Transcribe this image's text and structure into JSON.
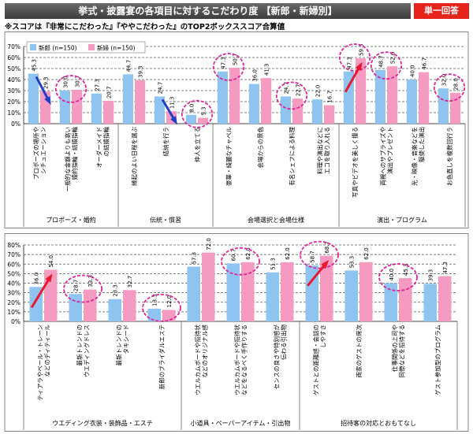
{
  "header": {
    "title": "挙式・披露宴の各項目に対するこだわり度 【新郎・新婦別】",
    "badge": "単一回答",
    "note": "※スコアは『非常にこだわった』『ややこだわった』のTOP2ボックススコア合算値"
  },
  "colors": {
    "groom": "#8fc4f0",
    "bride": "#f59ac0",
    "highlight": "#e0249a",
    "arrow_up": "#e8182e",
    "arrow_down": "#1f3fc4"
  },
  "chart_data": [
    {
      "type": "bar",
      "ylim": [
        0,
        70
      ],
      "yticks": [
        "0%",
        "10%",
        "20%",
        "30%",
        "40%",
        "50%",
        "60%",
        "70%"
      ],
      "grid": true,
      "legend": "top-left",
      "series": [
        {
          "name": "新郎 (n=150)",
          "values": [
            45.3,
            30.0,
            27.3,
            44.7,
            24.7,
            8.0,
            47.3,
            36.0,
            24.7,
            22.0,
            47.3,
            48.7,
            40.0,
            32.0
          ]
        },
        {
          "name": "新婦 (n=150)",
          "values": [
            29.3,
            30.7,
            20.7,
            39.3,
            11.3,
            5.3,
            50.7,
            41.3,
            22.7,
            16.7,
            59.3,
            52.0,
            46.7,
            28.0
          ]
        }
      ],
      "categories": [
        "プロポーズの場所や\nシチュエーション",
        "一般的な金額よりも高い\n婚約指輪・結婚指輪",
        "オーダーメイド\nの結婚指輪",
        "縁起のよい日程を選ぶ",
        "結納を行う",
        "仲人を立てる",
        "豪華・綺麗なチャペル",
        "会場からの景色",
        "有名シェフによる料理",
        "料理や演出などに\nエコを取り入れる",
        "写真やビデオを美しく撮る",
        "両親へのサプライズや\n演出やプレゼント",
        "光・映像・音楽などを\n駆使した演出",
        "お色直しを複数回行う"
      ],
      "groups": [
        {
          "label": "プロポーズ・婚約",
          "start": 0,
          "count": 3
        },
        {
          "label": "伝統・慣習",
          "start": 3,
          "count": 3
        },
        {
          "label": "会場選択と会場仕様",
          "start": 6,
          "count": 4
        },
        {
          "label": "演出・プログラム",
          "start": 10,
          "count": 4
        }
      ],
      "highlights": [
        1,
        5,
        6,
        8,
        10,
        11,
        13
      ],
      "arrows": [
        {
          "index": 0,
          "dir": "down"
        },
        {
          "index": 4,
          "dir": "down"
        },
        {
          "index": 10,
          "dir": "up"
        }
      ]
    },
    {
      "type": "bar",
      "ylim": [
        0,
        80
      ],
      "yticks": [
        "0%",
        "10%",
        "20%",
        "30%",
        "40%",
        "50%",
        "60%",
        "70%",
        "80%"
      ],
      "grid": true,
      "series": [
        {
          "name": "新郎 (n=150)",
          "values": [
            36.0,
            28.7,
            23.3,
            13.3,
            57.3,
            60.7,
            51.3,
            58.7,
            53.3,
            40.0,
            39.3
          ]
        },
        {
          "name": "新婦 (n=150)",
          "values": [
            54.0,
            33.3,
            32.7,
            12.0,
            72.0,
            62.0,
            62.0,
            68.7,
            62.0,
            45.3,
            47.3
          ]
        }
      ],
      "categories": [
        "ティアラやベール・トレーン\nなどのディティール",
        "最新トレンドの\nウエディングドレス",
        "最新トレンドの\nタキシード",
        "新郎のブライダルエステ",
        "ウエルカムボードや招待状\nなどのオリジナル感",
        "ウエルカムボードや招待状\nなどをなるべく手作りする",
        "センスの良さや特別感が\n伝わる引出物",
        "ゲストとの距離感・会話の\nしやすさ",
        "両家のゲストの席次",
        "仕事関係の上司や\n同僚などを招待する",
        "ゲスト参加型のプログラム"
      ],
      "groups": [
        {
          "label": "ウエディング衣装・装飾品・エステ",
          "start": 0,
          "count": 4
        },
        {
          "label": "小道具・ペーパーアイテム・引出物",
          "start": 4,
          "count": 3
        },
        {
          "label": "招待客の対応とおもてなし",
          "start": 7,
          "count": 4
        }
      ],
      "highlights": [
        1,
        3,
        5,
        7,
        9
      ],
      "arrows": [
        {
          "index": 0,
          "dir": "up"
        },
        {
          "index": 7,
          "dir": "up"
        }
      ]
    }
  ]
}
